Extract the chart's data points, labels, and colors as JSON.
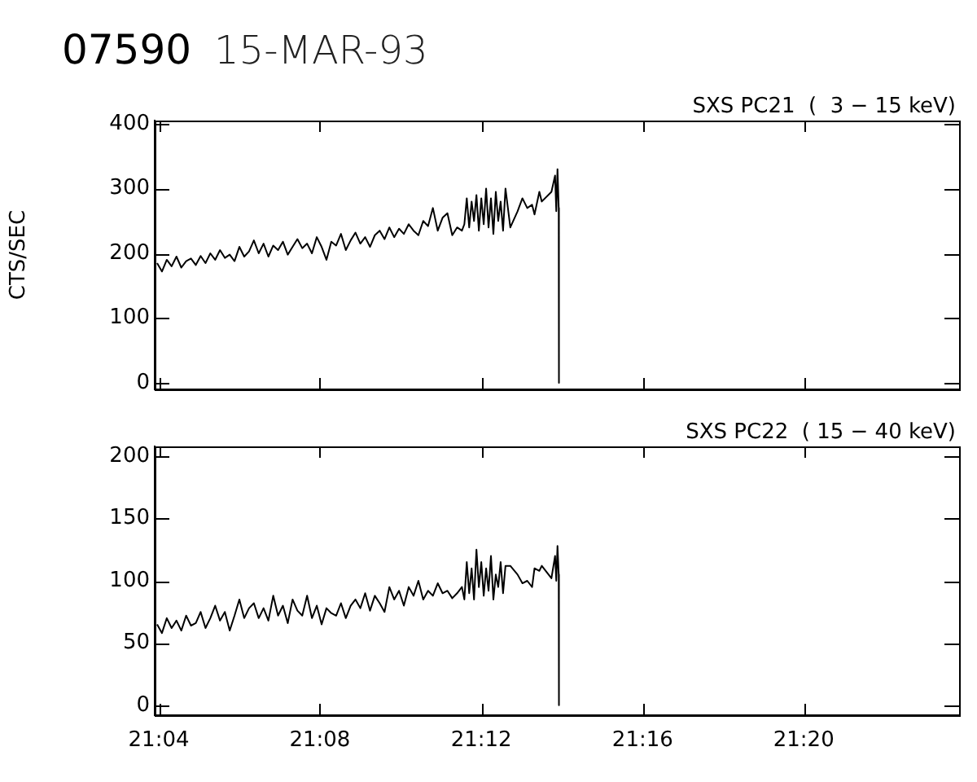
{
  "chart_data": [
    {
      "type": "line",
      "title": "07590",
      "subtitle": "15-MAR-93",
      "ylabel": "CTS/SEC",
      "annotations": [
        "SXS PC21  (  3 − 15 keV)"
      ],
      "tick_labels": "y",
      "grid": false,
      "legend": false,
      "marker": "none",
      "line_style": "solid",
      "xlim": [
        21.065,
        21.3975
      ],
      "xticks": [
        {
          "value": 21.0667,
          "label": null
        },
        {
          "value": 21.1333,
          "label": null
        },
        {
          "value": 21.2,
          "label": null
        },
        {
          "value": 21.2667,
          "label": null
        },
        {
          "value": 21.3333,
          "label": null
        }
      ],
      "ylim": [
        -10,
        405
      ],
      "yticks": [
        0,
        100,
        200,
        300,
        400
      ],
      "x": [
        21.066,
        21.068,
        21.07,
        21.072,
        21.074,
        21.076,
        21.078,
        21.08,
        21.082,
        21.084,
        21.086,
        21.088,
        21.09,
        21.092,
        21.094,
        21.096,
        21.098,
        21.1,
        21.102,
        21.104,
        21.106,
        21.108,
        21.11,
        21.112,
        21.114,
        21.116,
        21.118,
        21.12,
        21.122,
        21.124,
        21.126,
        21.128,
        21.13,
        21.132,
        21.134,
        21.136,
        21.138,
        21.14,
        21.142,
        21.144,
        21.146,
        21.148,
        21.15,
        21.152,
        21.154,
        21.156,
        21.158,
        21.16,
        21.162,
        21.164,
        21.166,
        21.168,
        21.17,
        21.172,
        21.174,
        21.176,
        21.178,
        21.18,
        21.182,
        21.184,
        21.186,
        21.188,
        21.19,
        21.192,
        21.193,
        21.194,
        21.195,
        21.196,
        21.197,
        21.198,
        21.199,
        21.2,
        21.201,
        21.202,
        21.203,
        21.204,
        21.205,
        21.206,
        21.207,
        21.208,
        21.209,
        21.21,
        21.212,
        21.215,
        21.217,
        21.219,
        21.221,
        21.222,
        21.224,
        21.225,
        21.229,
        21.2305,
        21.231,
        21.2315,
        21.232,
        21.2321
      ],
      "series": [
        {
          "color": "#000000",
          "values": [
            185,
            172,
            190,
            180,
            195,
            178,
            188,
            192,
            182,
            196,
            185,
            200,
            190,
            205,
            193,
            198,
            188,
            210,
            195,
            203,
            220,
            200,
            215,
            195,
            212,
            205,
            218,
            198,
            210,
            222,
            208,
            215,
            200,
            225,
            210,
            190,
            218,
            212,
            230,
            205,
            220,
            232,
            215,
            225,
            210,
            228,
            235,
            222,
            240,
            225,
            238,
            230,
            245,
            235,
            228,
            250,
            242,
            270,
            235,
            255,
            262,
            228,
            240,
            235,
            245,
            285,
            240,
            280,
            250,
            290,
            235,
            285,
            245,
            300,
            240,
            285,
            230,
            295,
            250,
            280,
            235,
            300,
            240,
            265,
            285,
            270,
            275,
            260,
            295,
            280,
            295,
            320,
            265,
            330,
            270,
            0
          ]
        }
      ]
    },
    {
      "type": "line",
      "annotations": [
        "SXS PC22  ( 15 − 40 keV)"
      ],
      "grid": false,
      "legend": false,
      "marker": "none",
      "line_style": "solid",
      "xlim": [
        21.065,
        21.3975
      ],
      "xticks": [
        {
          "value": 21.0667,
          "label": "21:04"
        },
        {
          "value": 21.1333,
          "label": "21:08"
        },
        {
          "value": 21.2,
          "label": "21:12"
        },
        {
          "value": 21.2667,
          "label": "21:16"
        },
        {
          "value": 21.3333,
          "label": "21:20"
        }
      ],
      "ylim": [
        -8,
        208
      ],
      "yticks": [
        0,
        50,
        100,
        150,
        200
      ],
      "x": [
        21.066,
        21.068,
        21.07,
        21.072,
        21.074,
        21.076,
        21.078,
        21.08,
        21.082,
        21.084,
        21.086,
        21.088,
        21.09,
        21.092,
        21.094,
        21.096,
        21.098,
        21.1,
        21.102,
        21.104,
        21.106,
        21.108,
        21.11,
        21.112,
        21.114,
        21.116,
        21.118,
        21.12,
        21.122,
        21.124,
        21.126,
        21.128,
        21.13,
        21.132,
        21.134,
        21.136,
        21.138,
        21.14,
        21.142,
        21.144,
        21.146,
        21.148,
        21.15,
        21.152,
        21.154,
        21.156,
        21.158,
        21.16,
        21.162,
        21.164,
        21.166,
        21.168,
        21.17,
        21.172,
        21.174,
        21.176,
        21.178,
        21.18,
        21.182,
        21.184,
        21.186,
        21.188,
        21.19,
        21.192,
        21.193,
        21.194,
        21.195,
        21.196,
        21.197,
        21.198,
        21.199,
        21.2,
        21.201,
        21.202,
        21.203,
        21.204,
        21.205,
        21.206,
        21.207,
        21.208,
        21.209,
        21.21,
        21.212,
        21.215,
        21.217,
        21.219,
        21.221,
        21.222,
        21.224,
        21.225,
        21.229,
        21.2305,
        21.231,
        21.2315,
        21.232,
        21.2321
      ],
      "series": [
        {
          "color": "#000000",
          "values": [
            65,
            58,
            70,
            62,
            68,
            60,
            72,
            64,
            66,
            75,
            62,
            70,
            80,
            68,
            75,
            60,
            72,
            85,
            70,
            78,
            82,
            70,
            78,
            68,
            88,
            72,
            80,
            66,
            85,
            76,
            72,
            88,
            70,
            80,
            65,
            78,
            74,
            72,
            82,
            70,
            80,
            85,
            78,
            90,
            76,
            88,
            82,
            75,
            95,
            85,
            92,
            80,
            95,
            88,
            100,
            85,
            92,
            88,
            98,
            90,
            92,
            86,
            90,
            95,
            85,
            115,
            90,
            110,
            85,
            125,
            95,
            115,
            88,
            110,
            92,
            120,
            85,
            105,
            95,
            115,
            90,
            112,
            112,
            105,
            98,
            100,
            95,
            110,
            108,
            112,
            102,
            120,
            100,
            128,
            105,
            0
          ]
        }
      ]
    }
  ]
}
